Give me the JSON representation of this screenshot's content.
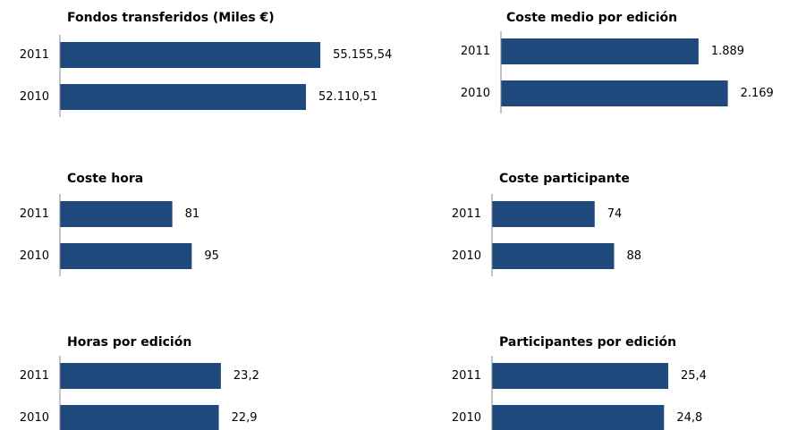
{
  "chart_data": [
    {
      "type": "hbar",
      "title": "Fondos transferidos (Miles €)",
      "categories": [
        "2011",
        "2010"
      ],
      "values": [
        55155.54,
        52110.51
      ],
      "value_labels": [
        "55.155,54",
        "52.110,51"
      ],
      "color": "#1f497d",
      "xlim": [
        0,
        72000
      ]
    },
    {
      "type": "hbar",
      "title": "Coste medio por edición",
      "categories": [
        "2011",
        "2010"
      ],
      "values": [
        1889,
        2169
      ],
      "value_labels": [
        "1.889",
        "2.169"
      ],
      "color": "#1f497d",
      "xlim": [
        0,
        3250
      ]
    },
    {
      "type": "hbar",
      "title": "Coste hora",
      "categories": [
        "2011",
        "2010"
      ],
      "values": [
        81,
        95
      ],
      "color": "#1f497d",
      "xlim": [
        0,
        245
      ]
    },
    {
      "type": "hbar",
      "title": "Coste participante",
      "categories": [
        "2011",
        "2010"
      ],
      "values": [
        74,
        88
      ],
      "color": "#1f497d",
      "xlim": [
        0,
        245
      ]
    },
    {
      "type": "hbar",
      "title": "Horas por edición",
      "categories": [
        "2011",
        "2010"
      ],
      "values": [
        23.2,
        22.9
      ],
      "value_labels": [
        "23,2",
        "22,9"
      ],
      "color": "#1f497d",
      "xlim": [
        0,
        49
      ]
    },
    {
      "type": "hbar",
      "title": "Participantes por edición",
      "categories": [
        "2011",
        "2010"
      ],
      "values": [
        25.4,
        24.8
      ],
      "value_labels": [
        "25,4",
        "24,8"
      ],
      "color": "#1f497d",
      "xlim": [
        0,
        49
      ]
    }
  ]
}
